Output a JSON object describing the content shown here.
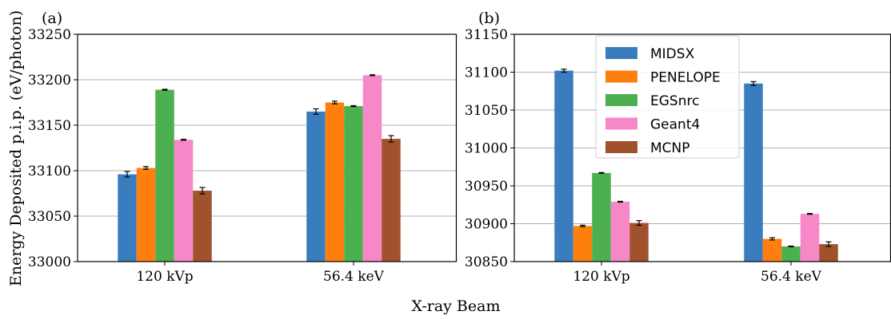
{
  "figure": {
    "ylabel": "Energy Deposited p.i.p. (eV/photon)",
    "xlabel": "X-ray Beam"
  },
  "colors": {
    "MIDSX": "#3a7dbf",
    "PENELOPE": "#ff7f0e",
    "EGSnrc": "#4caf50",
    "Geant4": "#f788c8",
    "MCNP": "#a0522d",
    "grid": "#b0b0b0",
    "error": "#000000"
  },
  "legend": {
    "placement": "upper-center",
    "panel": "b",
    "entries": [
      "MIDSX",
      "PENELOPE",
      "EGSnrc",
      "Geant4",
      "MCNP"
    ]
  },
  "chart_data": [
    {
      "panel_label": "(a)",
      "type": "bar",
      "categories": [
        "120 kVp",
        "56.4 keV"
      ],
      "ylim": [
        33000,
        33250
      ],
      "yticks": [
        33000,
        33050,
        33100,
        33150,
        33200,
        33250
      ],
      "ytick_labels": [
        "33000",
        "33050",
        "33100",
        "33150",
        "33200",
        "33250"
      ],
      "grid": "y",
      "series": [
        {
          "name": "MIDSX",
          "values": [
            33096,
            33165
          ],
          "errors": [
            3,
            3
          ]
        },
        {
          "name": "PENELOPE",
          "values": [
            33103,
            33175
          ],
          "errors": [
            1.5,
            1.5
          ]
        },
        {
          "name": "EGSnrc",
          "values": [
            33189,
            33171
          ],
          "errors": [
            0.5,
            0.5
          ]
        },
        {
          "name": "Geant4",
          "values": [
            33134,
            33205
          ],
          "errors": [
            0.5,
            0.5
          ]
        },
        {
          "name": "MCNP",
          "values": [
            33078,
            33135
          ],
          "errors": [
            3.5,
            3.5
          ]
        }
      ]
    },
    {
      "panel_label": "(b)",
      "type": "bar",
      "categories": [
        "120 kVp",
        "56.4 keV"
      ],
      "ylim": [
        30850,
        31150
      ],
      "yticks": [
        30850,
        30900,
        30950,
        31000,
        31050,
        31100,
        31150
      ],
      "ytick_labels": [
        "30850",
        "30900",
        "30950",
        "31000",
        "31050",
        "31100",
        "31150"
      ],
      "grid": "y",
      "series": [
        {
          "name": "MIDSX",
          "values": [
            31102,
            31085
          ],
          "errors": [
            2,
            2.5
          ]
        },
        {
          "name": "PENELOPE",
          "values": [
            30897,
            30880
          ],
          "errors": [
            1,
            1.5
          ]
        },
        {
          "name": "EGSnrc",
          "values": [
            30967,
            30870
          ],
          "errors": [
            0.5,
            0.5
          ]
        },
        {
          "name": "Geant4",
          "values": [
            30929,
            30913
          ],
          "errors": [
            0.5,
            0.5
          ]
        },
        {
          "name": "MCNP",
          "values": [
            30901,
            30873
          ],
          "errors": [
            3,
            3
          ]
        }
      ]
    }
  ]
}
